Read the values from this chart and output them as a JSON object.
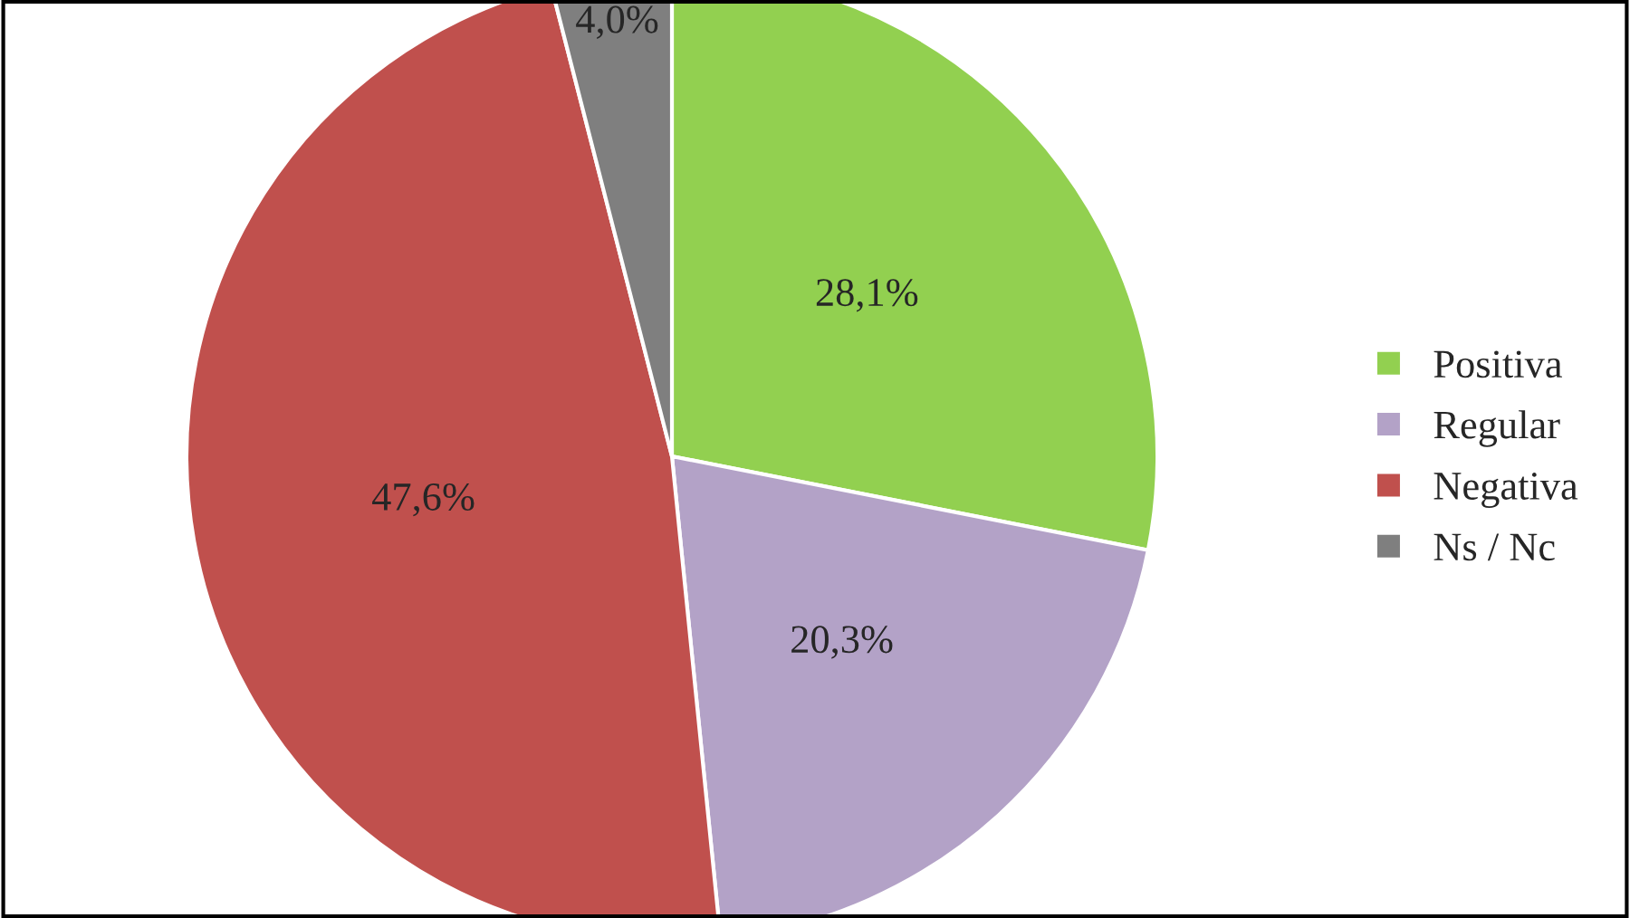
{
  "chart_data": {
    "type": "pie",
    "categories": [
      "Positiva",
      "Regular",
      "Negativa",
      "Ns / Nc"
    ],
    "values": [
      28.1,
      20.3,
      47.6,
      4.0
    ],
    "value_labels": [
      "28,1%",
      "20,3%",
      "47,6%",
      "4,0%"
    ],
    "colors": [
      "#92d050",
      "#b3a2c7",
      "#c0504d",
      "#7f7f7f"
    ],
    "legend": "right"
  }
}
